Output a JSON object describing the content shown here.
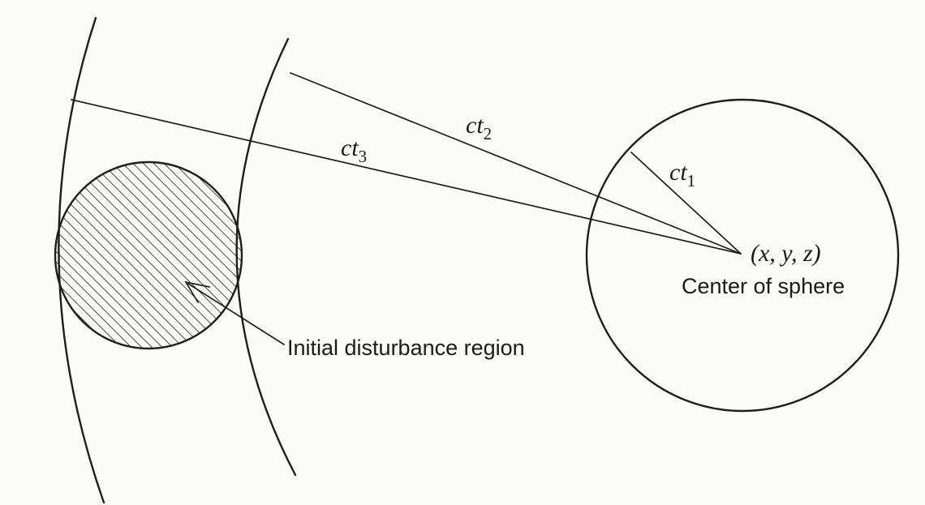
{
  "labels": {
    "ct1": {
      "base": "ct",
      "sub": "1"
    },
    "ct2": {
      "base": "ct",
      "sub": "2"
    },
    "ct3": {
      "base": "ct",
      "sub": "3"
    },
    "point": "(x, y, z)",
    "center": "Center of sphere",
    "disturbance": "Initial disturbance region"
  }
}
